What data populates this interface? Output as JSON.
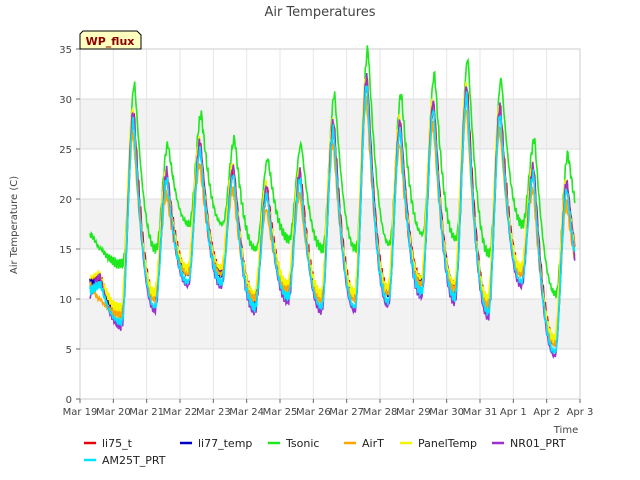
{
  "chart_data": {
    "type": "line",
    "title": "Air Temperatures",
    "xlabel": "Time",
    "ylabel": "Air Temperature (C)",
    "ylim": [
      0,
      35
    ],
    "yticks": [
      0,
      5,
      10,
      15,
      20,
      25,
      30,
      35
    ],
    "xlim": [
      0,
      15
    ],
    "xticks": [
      {
        "day": 0,
        "label": "Mar 19"
      },
      {
        "day": 1,
        "label": "Mar 20"
      },
      {
        "day": 2,
        "label": "Mar 21"
      },
      {
        "day": 3,
        "label": "Mar 22"
      },
      {
        "day": 4,
        "label": "Mar 23"
      },
      {
        "day": 5,
        "label": "Mar 24"
      },
      {
        "day": 6,
        "label": "Mar 25"
      },
      {
        "day": 7,
        "label": "Mar 26"
      },
      {
        "day": 8,
        "label": "Mar 27"
      },
      {
        "day": 9,
        "label": "Mar 28"
      },
      {
        "day": 10,
        "label": "Mar 29"
      },
      {
        "day": 11,
        "label": "Mar 30"
      },
      {
        "day": 12,
        "label": "Mar 31"
      },
      {
        "day": 13,
        "label": "Apr 1"
      },
      {
        "day": 14,
        "label": "Apr 2"
      },
      {
        "day": 15,
        "label": "Apr 3"
      }
    ],
    "grid": true,
    "banded_background": true,
    "badge": "WP_flux",
    "legend_position": "bottom",
    "daily_extremes": [
      {
        "day": 19,
        "min": 11.5,
        "max": 12.0
      },
      {
        "day": 20,
        "min": 8.5,
        "max": 28.5
      },
      {
        "day": 21,
        "min": 10.0,
        "max": 22.5
      },
      {
        "day": 22,
        "min": 12.5,
        "max": 25.5
      },
      {
        "day": 23,
        "min": 12.5,
        "max": 23.0
      },
      {
        "day": 24,
        "min": 10.0,
        "max": 21.0
      },
      {
        "day": 25,
        "min": 11.0,
        "max": 22.5
      },
      {
        "day": 26,
        "min": 10.0,
        "max": 27.5
      },
      {
        "day": 27,
        "min": 10.0,
        "max": 32.0
      },
      {
        "day": 28,
        "min": 10.5,
        "max": 27.5
      },
      {
        "day": 29,
        "min": 11.5,
        "max": 29.5
      },
      {
        "day": 30,
        "min": 11.0,
        "max": 31.0
      },
      {
        "day": 31,
        "min": 9.5,
        "max": 29.0
      },
      {
        "day": 32,
        "min": 12.5,
        "max": 23.0
      },
      {
        "day": 33,
        "min": 5.5,
        "max": 21.5
      },
      {
        "day": 34,
        "min": 11.0,
        "max": 12.5
      }
    ],
    "series": [
      {
        "name": "li75_t",
        "color": "#e8000b",
        "offset_max": 0.0,
        "offset_min": 0.3,
        "phase": 0.0
      },
      {
        "name": "li77_temp",
        "color": "#0000c8",
        "offset_max": -0.5,
        "offset_min": 0.0,
        "phase": 0.01
      },
      {
        "name": "Tsonic",
        "color": "#1ee81e",
        "offset_max": 3.0,
        "offset_min": 5.0,
        "phase": -0.02
      },
      {
        "name": "AirT",
        "color": "#ffa500",
        "offset_max": -2.0,
        "offset_min": 0.0,
        "phase": 0.02
      },
      {
        "name": "PanelTemp",
        "color": "#f5f500",
        "offset_max": 0.5,
        "offset_min": 0.6,
        "phase": 0.03
      },
      {
        "name": "NR01_PRT",
        "color": "#9a32cd",
        "offset_max": 0.3,
        "offset_min": -1.2,
        "phase": 0.015
      },
      {
        "name": "AM25T_PRT",
        "color": "#00e5ff",
        "offset_max": -0.5,
        "offset_min": -0.8,
        "phase": 0.01
      }
    ]
  }
}
